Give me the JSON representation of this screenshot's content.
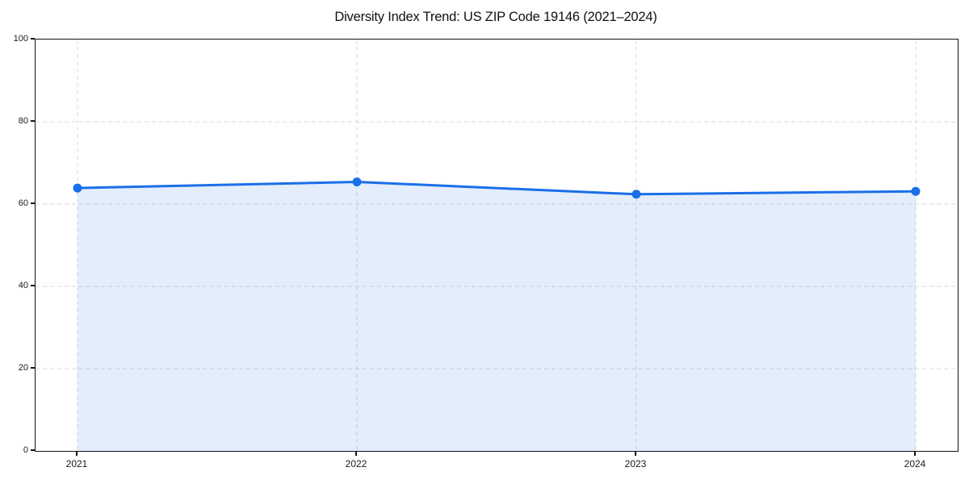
{
  "chart_data": {
    "type": "area",
    "title": "Diversity Index Trend: US ZIP Code 19146 (2021–2024)",
    "x": [
      "2021",
      "2022",
      "2023",
      "2024"
    ],
    "series": [
      {
        "name": "Diversity Index",
        "values": [
          63.9,
          65.4,
          62.4,
          63.1
        ]
      }
    ],
    "xlabel": "",
    "ylabel": "",
    "ylim": [
      0,
      100
    ],
    "yticks": [
      0,
      20,
      40,
      60,
      80,
      100
    ],
    "grid": "dashed horizontal and vertical gridlines",
    "legend_position": "none",
    "line_color": "#1a6fe8",
    "marker_color": "#1a6fe8",
    "fill_color": "#1a6fe8",
    "fill_opacity": 0.12,
    "grid_color": "#d9d9d9",
    "frame_color": "#141414"
  }
}
